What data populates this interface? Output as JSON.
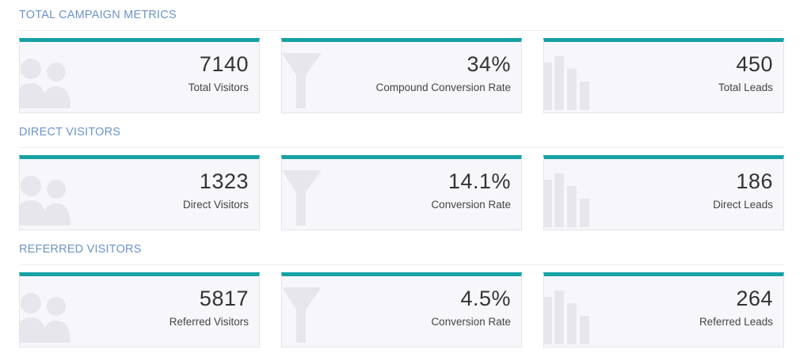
{
  "sections": [
    {
      "title": "TOTAL CAMPAIGN METRICS",
      "cards": [
        {
          "value": "7140",
          "label": "Total Visitors",
          "icon": "users-icon"
        },
        {
          "value": "34%",
          "label": "Compound Conversion Rate",
          "icon": "funnel-icon"
        },
        {
          "value": "450",
          "label": "Total Leads",
          "icon": "bar-chart-icon"
        }
      ]
    },
    {
      "title": "DIRECT VISITORS",
      "cards": [
        {
          "value": "1323",
          "label": "Direct Visitors",
          "icon": "users-icon"
        },
        {
          "value": "14.1%",
          "label": "Conversion Rate",
          "icon": "funnel-icon"
        },
        {
          "value": "186",
          "label": "Direct Leads",
          "icon": "bar-chart-icon"
        }
      ]
    },
    {
      "title": "REFERRED VISITORS",
      "cards": [
        {
          "value": "5817",
          "label": "Referred Visitors",
          "icon": "users-icon"
        },
        {
          "value": "4.5%",
          "label": "Conversion Rate",
          "icon": "funnel-icon"
        },
        {
          "value": "264",
          "label": "Referred Leads",
          "icon": "bar-chart-icon"
        }
      ]
    }
  ],
  "colors": {
    "accent": "#16a2a4",
    "section_title": "#6d93c9",
    "card_background": "#f7f7fb",
    "icon_watermark": "#e6e6ec"
  }
}
